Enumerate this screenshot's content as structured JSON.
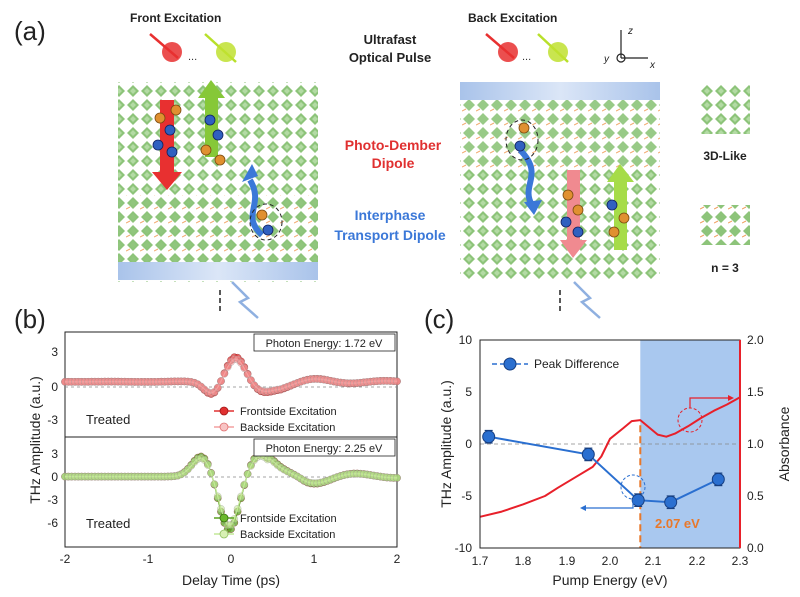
{
  "panel_a": {
    "label": "(a)",
    "front_title": "Front Excitation",
    "back_title": "Back Excitation",
    "center_title_line1": "Ultrafast",
    "center_title_line2": "Optical Pulse",
    "pd_line1": "Photo-Dember",
    "pd_line2": "Dipole",
    "it_line1": "Interphase",
    "it_line2": "Transport Dipole",
    "legend_3d": "3D-Like",
    "legend_n3": "n = 3",
    "ellipsis": "...",
    "axis_z": "z",
    "axis_y": "y",
    "axis_x": "x"
  },
  "panel_b": {
    "label": "(b)",
    "chart_data": {
      "type": "line",
      "xlabel": "Delay Time (ps)",
      "ylabel": "THz Amplitude (a.u.)",
      "xlim": [
        -2,
        2
      ],
      "xticks": [
        "-2",
        "-1",
        "0",
        "1",
        "2"
      ],
      "top": {
        "title": "Photon Energy: 1.72 eV",
        "note": "Treated",
        "ylim": [
          -5,
          4.5
        ],
        "yticks": [
          "3",
          "0",
          "-3"
        ],
        "series": [
          {
            "name": "Frontside Excitation",
            "color": "#e03030"
          },
          {
            "name": "Backside Excitation",
            "color": "#f4a0a0"
          }
        ]
      },
      "bottom": {
        "title": "Photon Energy: 2.25 eV",
        "note": "Treated",
        "ylim": [
          -8,
          4.5
        ],
        "yticks": [
          "3",
          "0",
          "-3",
          "-6"
        ],
        "series": [
          {
            "name": "Frontside Excitation",
            "color": "#5aa020"
          },
          {
            "name": "Backside Excitation",
            "color": "#c4e898"
          }
        ]
      }
    }
  },
  "panel_c": {
    "label": "(c)",
    "chart_data": {
      "type": "line",
      "xlabel": "Pump Energy (eV)",
      "ylabel": "THz Amplitude (a.u.)",
      "y2label": "Absorbance",
      "xlim": [
        1.7,
        2.3
      ],
      "ylim": [
        -10,
        10
      ],
      "y2lim": [
        0,
        2
      ],
      "xticks": [
        "1.7",
        "1.8",
        "1.9",
        "2.0",
        "2.1",
        "2.2",
        "2.3"
      ],
      "yticks": [
        "10",
        "5",
        "0",
        "-5",
        "-10"
      ],
      "y2ticks": [
        "2.0",
        "1.5",
        "1.0",
        "0.5",
        "0.0"
      ],
      "legend": "Peak Difference",
      "annotation": "2.07 eV",
      "marker_x": 2.07,
      "series": [
        {
          "name": "Peak Difference",
          "color": "#2a6fd0",
          "x": [
            1.72,
            1.95,
            2.065,
            2.14,
            2.25
          ],
          "y": [
            0.7,
            -1.0,
            -5.4,
            -5.6,
            -3.4
          ],
          "err": [
            0.6,
            0.6,
            0.6,
            0.6,
            0.6
          ]
        },
        {
          "name": "Absorbance",
          "color": "#e8202a",
          "x": [
            1.7,
            1.75,
            1.8,
            1.85,
            1.88,
            1.92,
            1.96,
            1.98,
            2.0,
            2.03,
            2.05,
            2.07,
            2.09,
            2.11,
            2.13,
            2.15,
            2.18,
            2.21,
            2.24,
            2.27,
            2.3
          ],
          "y": [
            0.3,
            0.35,
            0.42,
            0.5,
            0.58,
            0.68,
            0.78,
            0.88,
            1.05,
            1.15,
            1.22,
            1.23,
            1.16,
            1.09,
            1.07,
            1.1,
            1.17,
            1.25,
            1.32,
            1.38,
            1.45
          ]
        }
      ]
    }
  }
}
